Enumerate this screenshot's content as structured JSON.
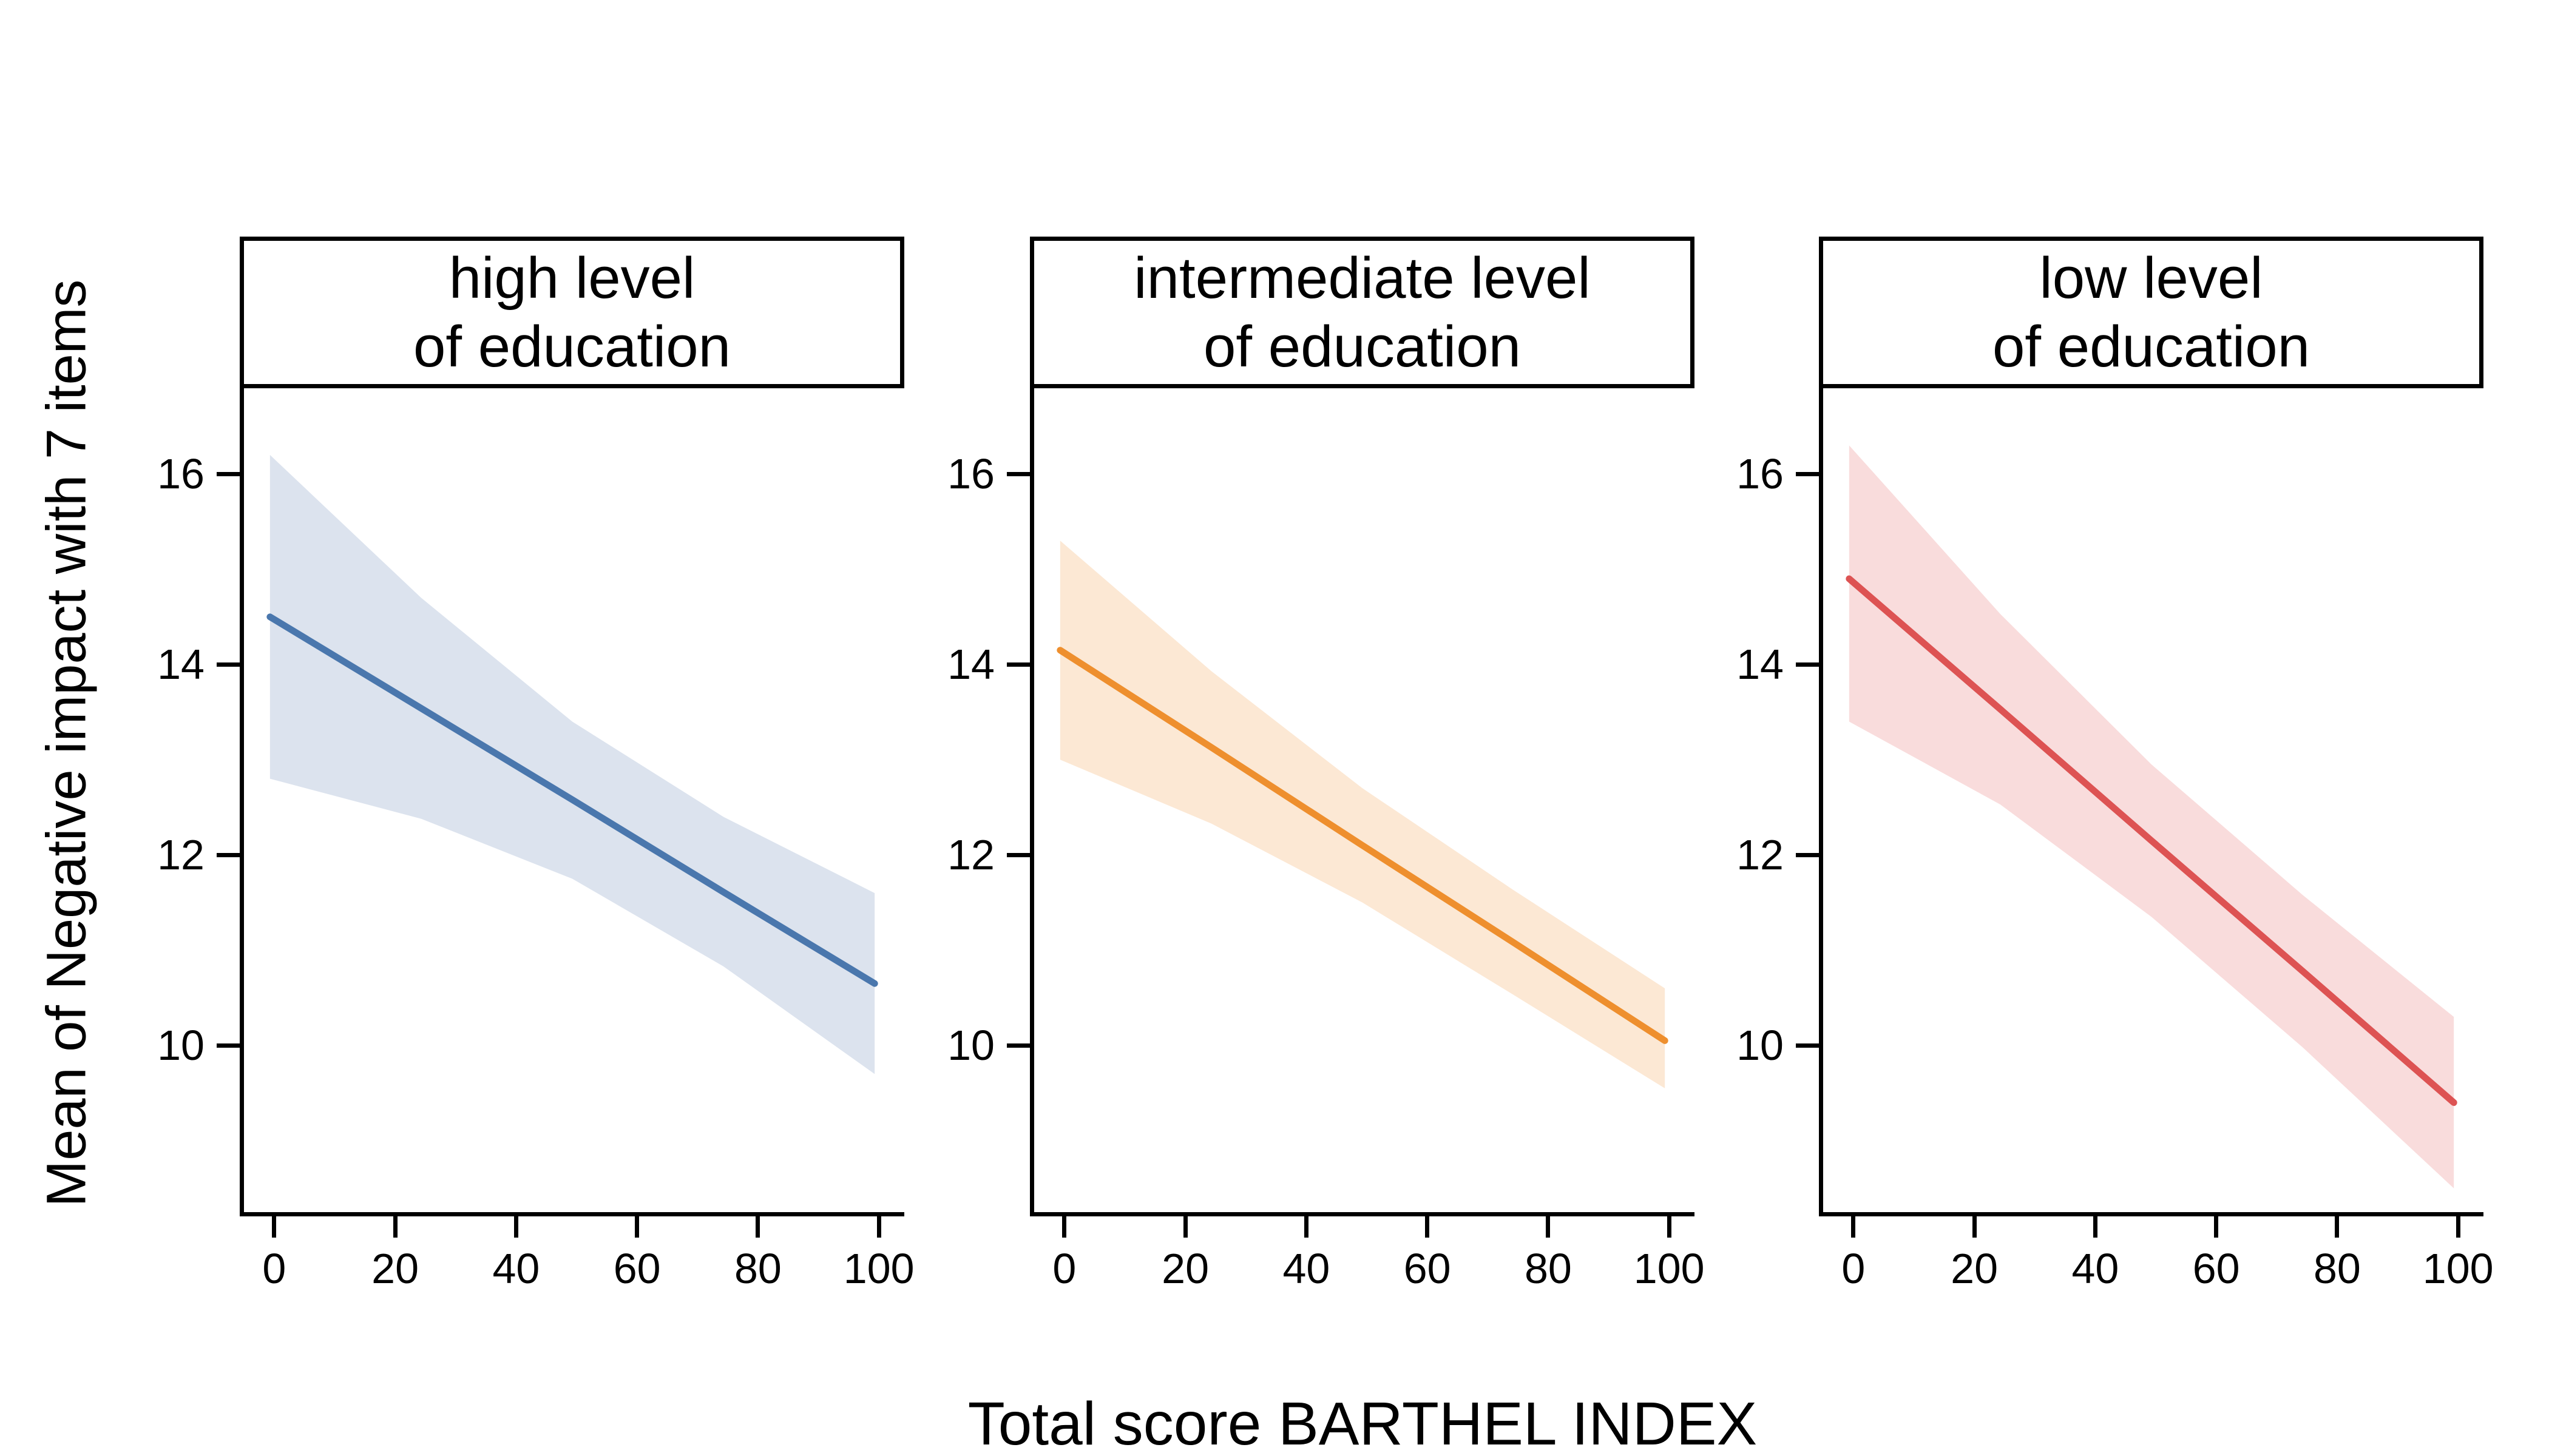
{
  "chart_data": {
    "type": "line",
    "xlabel": "Total score BARTHEL INDEX",
    "ylabel": "Mean of Negative impact with 7 items",
    "x_ticks": [
      0,
      20,
      40,
      60,
      80,
      100
    ],
    "y_ticks": [
      16,
      14,
      12,
      10
    ],
    "xlim": [
      -4.3,
      104.9
    ],
    "ylim": [
      8.25,
      16.9
    ],
    "grid": "off",
    "legend": "none",
    "facets": [
      {
        "id": "high",
        "title_line1": "high level",
        "title_line2": "of education",
        "line_color": "#4a77ad",
        "band_color": "#dce3ee",
        "x": [
          0,
          25,
          50,
          75,
          100
        ],
        "line": [
          14.5,
          13.54,
          12.58,
          11.61,
          10.65
        ],
        "ci_upper": [
          16.2,
          14.7,
          13.4,
          12.4,
          11.6
        ],
        "ci_lower": [
          12.8,
          12.38,
          11.75,
          10.83,
          9.7
        ]
      },
      {
        "id": "intermediate",
        "title_line1": "intermediate level",
        "title_line2": "of education",
        "line_color": "#ee8f2e",
        "band_color": "#fce8d4",
        "x": [
          0,
          25,
          50,
          75,
          100
        ],
        "line": [
          14.15,
          13.13,
          12.1,
          11.08,
          10.05
        ],
        "ci_upper": [
          15.3,
          13.93,
          12.7,
          11.63,
          10.6
        ],
        "ci_lower": [
          13.0,
          12.33,
          11.5,
          10.53,
          9.55
        ]
      },
      {
        "id": "low",
        "title_line1": "low level",
        "title_line2": "of education",
        "line_color": "#dd5353",
        "band_color": "#f9dcdc",
        "x": [
          0,
          25,
          50,
          75,
          100
        ],
        "line": [
          14.9,
          13.53,
          12.15,
          10.78,
          9.4
        ],
        "ci_upper": [
          16.3,
          14.53,
          12.95,
          11.58,
          10.3
        ],
        "ci_lower": [
          13.4,
          12.53,
          11.35,
          9.98,
          8.5
        ]
      }
    ]
  },
  "layout_colors": {
    "axis": "#000000",
    "background": "#ffffff"
  }
}
